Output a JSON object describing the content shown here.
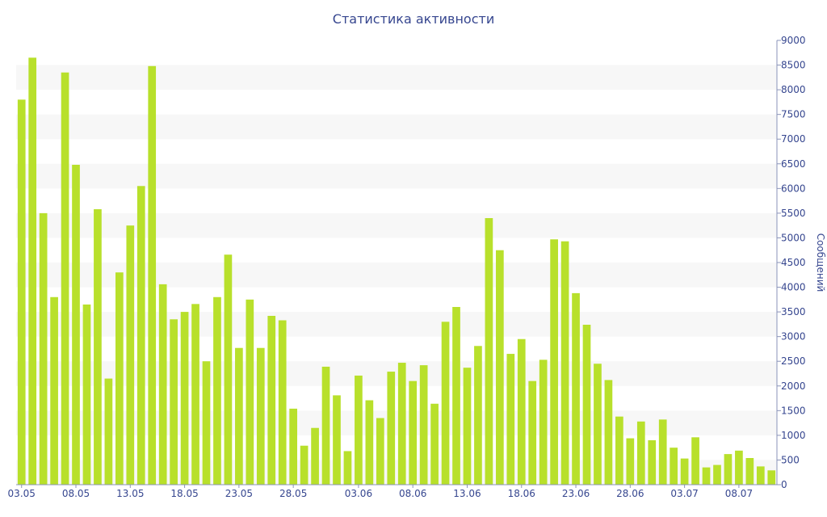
{
  "chart_data": {
    "type": "bar",
    "title": "Статистика активности",
    "xlabel": "",
    "ylabel": "Сообщений",
    "ylim": [
      0,
      9000
    ],
    "y_ticks": [
      0,
      500,
      1000,
      1500,
      2000,
      2500,
      3000,
      3500,
      4000,
      4500,
      5000,
      5500,
      6000,
      6500,
      7000,
      7500,
      8000,
      8500,
      9000
    ],
    "x_ticks": [
      "03.05",
      "08.05",
      "13.05",
      "18.05",
      "23.05",
      "28.05",
      "03.06",
      "08.06",
      "13.06",
      "18.06",
      "23.06",
      "28.06",
      "03.07",
      "08.07"
    ],
    "grid": "horizontal alternating bands",
    "bar_color": "#b8e02b",
    "text_color": "#36468f",
    "categories": [
      "03.05",
      "04.05",
      "05.05",
      "06.05",
      "07.05",
      "08.05",
      "09.05",
      "10.05",
      "11.05",
      "12.05",
      "13.05",
      "14.05",
      "15.05",
      "16.05",
      "17.05",
      "18.05",
      "19.05",
      "20.05",
      "21.05",
      "22.05",
      "23.05",
      "24.05",
      "25.05",
      "26.05",
      "27.05",
      "28.05",
      "29.05",
      "30.05",
      "31.05",
      "01.06",
      "02.06",
      "03.06",
      "04.06",
      "05.06",
      "06.06",
      "07.06",
      "08.06",
      "09.06",
      "10.06",
      "11.06",
      "12.06",
      "13.06",
      "14.06",
      "15.06",
      "16.06",
      "17.06",
      "18.06",
      "19.06",
      "20.06",
      "21.06",
      "22.06",
      "23.06",
      "24.06",
      "25.06",
      "26.06",
      "27.06",
      "28.06",
      "29.06",
      "30.06",
      "01.07",
      "02.07",
      "03.07",
      "04.07",
      "05.07",
      "06.07",
      "07.07",
      "08.07",
      "09.07",
      "10.07",
      "11.07"
    ],
    "values": [
      7800,
      8650,
      5500,
      3800,
      8350,
      6480,
      3650,
      5580,
      2150,
      4300,
      5250,
      6050,
      8480,
      4060,
      3350,
      3500,
      3660,
      2500,
      3800,
      4660,
      2770,
      3750,
      2770,
      3420,
      3330,
      1540,
      790,
      1150,
      2390,
      1810,
      680,
      2210,
      1710,
      1350,
      2290,
      2470,
      2100,
      2420,
      1640,
      3300,
      3600,
      2370,
      2810,
      5400,
      4750,
      2650,
      2950,
      2100,
      2530,
      4970,
      4930,
      3880,
      3240,
      2450,
      2120,
      1380,
      940,
      1280,
      900,
      1320,
      750,
      530,
      960,
      350,
      400,
      620,
      690,
      540,
      370,
      290
    ]
  }
}
